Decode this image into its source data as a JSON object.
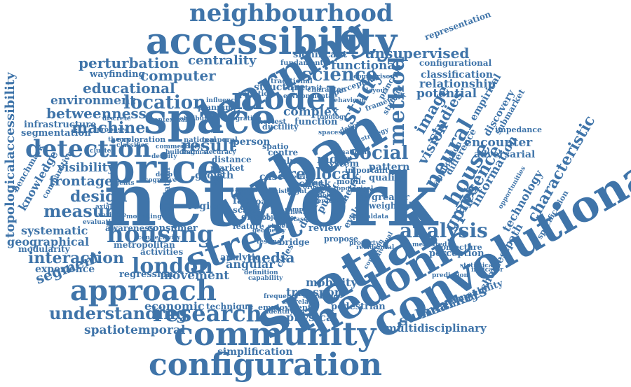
{
  "accent_color": "#3f74a9",
  "words": [
    {
      "t": "neighbourhood"
    },
    {
      "t": "accessibility"
    },
    {
      "t": "unsupervised"
    },
    {
      "t": "perturbation"
    },
    {
      "t": "centrality"
    },
    {
      "t": "learning"
    },
    {
      "t": "computer"
    },
    {
      "t": "science"
    },
    {
      "t": "functional"
    },
    {
      "t": "wayfinding"
    },
    {
      "t": "educational"
    },
    {
      "t": "model"
    },
    {
      "t": "space"
    },
    {
      "t": "location"
    },
    {
      "t": "environment"
    },
    {
      "t": "betweenness"
    },
    {
      "t": "machine"
    },
    {
      "t": "detection"
    },
    {
      "t": "urban"
    },
    {
      "t": "result"
    },
    {
      "t": "study"
    },
    {
      "t": "social"
    },
    {
      "t": "method"
    },
    {
      "t": "price"
    },
    {
      "t": "arealocal"
    },
    {
      "t": "visibility"
    },
    {
      "t": "frontage"
    },
    {
      "t": "design"
    },
    {
      "t": "measure"
    },
    {
      "t": "network"
    },
    {
      "t": "house"
    },
    {
      "t": "neural"
    },
    {
      "t": "street"
    },
    {
      "t": "housing"
    },
    {
      "t": "analysis"
    },
    {
      "t": "systematic"
    },
    {
      "t": "geographical"
    },
    {
      "t": "interaction"
    },
    {
      "t": "london"
    },
    {
      "t": "segment"
    },
    {
      "t": "approach"
    },
    {
      "t": "spatial"
    },
    {
      "t": "hedonic"
    },
    {
      "t": "convolutional"
    },
    {
      "t": "understanding"
    },
    {
      "t": "research"
    },
    {
      "t": "economic"
    },
    {
      "t": "community"
    },
    {
      "t": "spatiotemporal"
    },
    {
      "t": "configuration"
    },
    {
      "t": "simplification"
    },
    {
      "t": "multidisciplinary"
    },
    {
      "t": "submarkets"
    },
    {
      "t": "shortestpath"
    },
    {
      "t": "characteristic"
    },
    {
      "t": "technology"
    },
    {
      "t": "presence"
    },
    {
      "t": "graph"
    },
    {
      "t": "information"
    },
    {
      "t": "encounter"
    },
    {
      "t": "adversarial"
    },
    {
      "t": "relationship"
    },
    {
      "t": "classification"
    },
    {
      "t": "potential"
    },
    {
      "t": "studies"
    },
    {
      "t": "vision"
    },
    {
      "t": "image"
    },
    {
      "t": "empirical"
    },
    {
      "t": "discovery"
    },
    {
      "t": "topologicalaccessibility"
    },
    {
      "t": "knowledge"
    },
    {
      "t": "infrastructure"
    },
    {
      "t": "segmentation"
    },
    {
      "t": "movement"
    },
    {
      "t": "regression"
    },
    {
      "t": "angular"
    },
    {
      "t": "media"
    },
    {
      "t": "mobility"
    },
    {
      "t": "transport"
    },
    {
      "t": "physical"
    },
    {
      "t": "pedestrian"
    },
    {
      "t": "measuring"
    },
    {
      "t": "permeability"
    },
    {
      "t": "representation"
    },
    {
      "t": "configurational"
    },
    {
      "t": "significant"
    },
    {
      "t": "structure"
    },
    {
      "t": "complex"
    },
    {
      "t": "function"
    },
    {
      "t": "system"
    },
    {
      "t": "pattern"
    },
    {
      "t": "quality"
    },
    {
      "t": "greater"
    },
    {
      "t": "weighted"
    },
    {
      "t": "review"
    },
    {
      "t": "evaluate"
    },
    {
      "t": "public"
    },
    {
      "t": "geometric"
    },
    {
      "t": "datalevel"
    },
    {
      "t": "more"
    },
    {
      "t": "growth"
    },
    {
      "t": "person"
    },
    {
      "t": "region"
    },
    {
      "t": "consumer"
    },
    {
      "t": "awareness"
    },
    {
      "t": "activities"
    },
    {
      "t": "metropolitan"
    },
    {
      "t": "modularity"
    },
    {
      "t": "experience"
    },
    {
      "t": "benchmark"
    },
    {
      "t": "comparative"
    },
    {
      "t": "population"
    },
    {
      "t": "analytic"
    },
    {
      "t": "effect"
    },
    {
      "t": "case"
    },
    {
      "t": "check"
    },
    {
      "t": "time"
    },
    {
      "t": "face"
    },
    {
      "t": "scale"
    },
    {
      "t": "technique"
    },
    {
      "t": "perception"
    },
    {
      "t": "conjecture"
    },
    {
      "t": "difference"
    },
    {
      "t": "application"
    },
    {
      "t": "mobile"
    },
    {
      "t": "bridge"
    },
    {
      "t": "propose"
    },
    {
      "t": "employment"
    },
    {
      "t": "portrait"
    },
    {
      "t": "traditional"
    },
    {
      "t": "perceptual"
    },
    {
      "t": "principle"
    },
    {
      "t": "student"
    },
    {
      "t": "planning"
    },
    {
      "t": "exploration"
    },
    {
      "t": "value"
    },
    {
      "t": "cities"
    },
    {
      "t": "centre"
    },
    {
      "t": "distance"
    },
    {
      "t": "market"
    },
    {
      "t": "road"
    },
    {
      "t": "spatio"
    },
    {
      "t": "important"
    },
    {
      "t": "dual"
    },
    {
      "t": "feature"
    },
    {
      "t": "variation"
    },
    {
      "t": "shortest"
    },
    {
      "t": "ductility"
    },
    {
      "t": "impedance"
    },
    {
      "t": "specification"
    },
    {
      "t": "fundamental"
    },
    {
      "t": "character"
    },
    {
      "t": "framework"
    },
    {
      "t": "topology"
    },
    {
      "t": "strategy"
    },
    {
      "t": "national"
    },
    {
      "t": "temporal"
    },
    {
      "t": "commercial"
    },
    {
      "t": "effects"
    },
    {
      "t": "building"
    },
    {
      "t": "accuracy"
    },
    {
      "t": "estimate"
    },
    {
      "t": "density"
    },
    {
      "t": "contextual"
    },
    {
      "t": "influence"
    },
    {
      "t": "classifier"
    },
    {
      "t": "spaces"
    },
    {
      "t": "defining"
    },
    {
      "t": "correlation"
    },
    {
      "t": "frequency"
    },
    {
      "t": "condition"
    },
    {
      "t": "individual"
    },
    {
      "t": "definition"
    },
    {
      "t": "capability"
    },
    {
      "t": "correlate"
    },
    {
      "t": "identifying"
    },
    {
      "t": "opportunities"
    },
    {
      "t": "visual"
    },
    {
      "t": "testing"
    },
    {
      "t": "order"
    },
    {
      "t": "light"
    },
    {
      "t": "exist"
    },
    {
      "t": "measured"
    },
    {
      "t": "variable"
    },
    {
      "t": "evaluation"
    },
    {
      "t": "connectivity"
    },
    {
      "t": "agents"
    },
    {
      "t": "spatialdata"
    },
    {
      "t": "submarket"
    },
    {
      "t": "discrete"
    },
    {
      "t": "attribute"
    },
    {
      "t": "integration"
    },
    {
      "t": "behaviour"
    },
    {
      "t": "environmental"
    },
    {
      "t": "comparison"
    },
    {
      "t": "layout"
    },
    {
      "t": "property"
    },
    {
      "t": "residential"
    },
    {
      "t": "hypothesis"
    },
    {
      "t": "objective"
    },
    {
      "t": "global"
    },
    {
      "t": "local"
    },
    {
      "t": "land"
    },
    {
      "t": "sample"
    },
    {
      "t": "streets"
    },
    {
      "t": "metric"
    },
    {
      "t": "topological"
    },
    {
      "t": "geometry"
    },
    {
      "t": "natural"
    },
    {
      "t": "cognitive"
    },
    {
      "t": "proposed"
    },
    {
      "t": "cluster"
    },
    {
      "t": "modelling"
    },
    {
      "t": "axial"
    },
    {
      "t": "theory"
    },
    {
      "t": "deep"
    },
    {
      "t": "prediction"
    },
    {
      "t": "routes"
    },
    {
      "t": "generate"
    },
    {
      "t": "dataset"
    },
    {
      "t": "statistical"
    },
    {
      "t": "indicator"
    }
  ]
}
